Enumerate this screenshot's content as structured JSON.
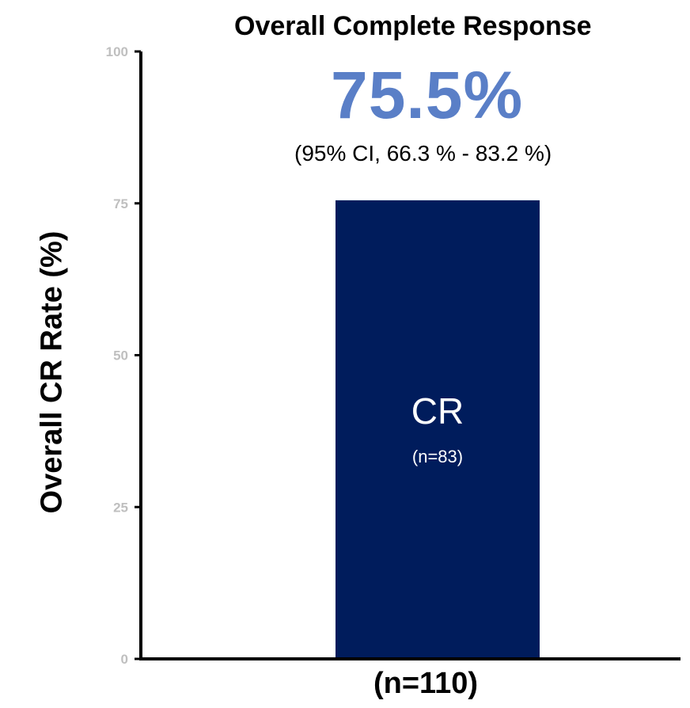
{
  "chart_data": {
    "type": "bar",
    "title": "Overall Complete Response",
    "headline_value": "75.5%",
    "ci_text": "(95% CI, 66.3 % - 83.2 %)",
    "ylabel": "Overall CR Rate (%)",
    "xlabel": "",
    "categories": [
      "(n=110)"
    ],
    "values": [
      75.5
    ],
    "bar_label": "CR",
    "bar_sublabel": "(n=83)",
    "ylim": [
      0,
      100
    ],
    "yticks": [
      0,
      25,
      50,
      75,
      100
    ],
    "grid": false,
    "legend": "none",
    "colors": {
      "bar": "#001c5c",
      "headline": "#5a7fc7",
      "tick_labels": "#bfbfbf",
      "axis": "#000000"
    }
  }
}
